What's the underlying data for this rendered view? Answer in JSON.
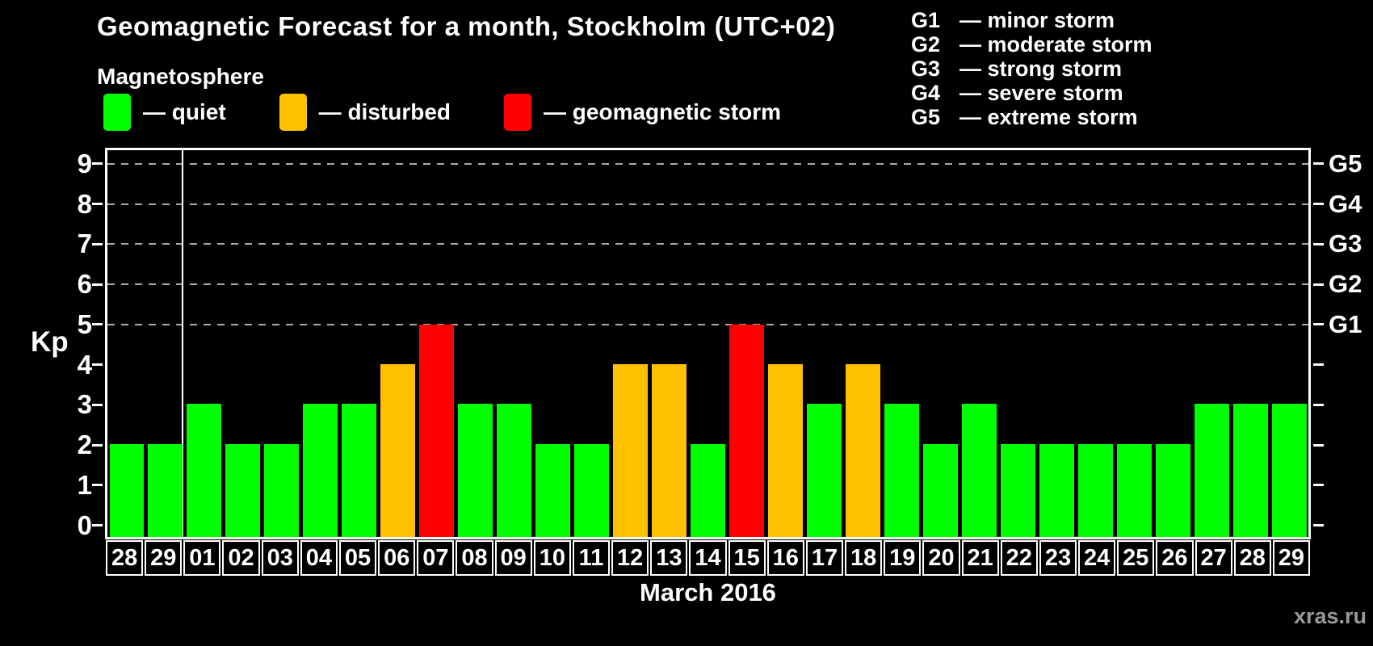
{
  "title": "Geomagnetic Forecast for a month, Stockholm (UTC+02)",
  "subtitle": "Magnetosphere",
  "watermark": "xras.ru",
  "colors": {
    "background": "#000000",
    "text": "#ffffff",
    "grid": "#aaaaaa",
    "watermark": "#999999",
    "quiet": "#00ff00",
    "disturbed": "#ffc000",
    "storm": "#ff0000"
  },
  "legend": {
    "items": [
      {
        "state": "quiet",
        "color": "#00ff00",
        "label": "— quiet"
      },
      {
        "state": "disturbed",
        "color": "#ffc000",
        "label": "— disturbed"
      },
      {
        "state": "storm",
        "color": "#ff0000",
        "label": "— geomagnetic storm"
      }
    ]
  },
  "g_legend": {
    "items": [
      {
        "code": "G1",
        "label": "— minor storm"
      },
      {
        "code": "G2",
        "label": "— moderate storm"
      },
      {
        "code": "G3",
        "label": "— strong storm"
      },
      {
        "code": "G4",
        "label": "— severe storm"
      },
      {
        "code": "G5",
        "label": "— extreme storm"
      }
    ]
  },
  "chart_data": {
    "type": "bar",
    "title": "Geomagnetic Forecast for a month, Stockholm (UTC+02)",
    "xlabel": "March 2016",
    "ylabel": "Kp",
    "ylim": [
      0,
      9
    ],
    "yticks": [
      0,
      1,
      2,
      3,
      4,
      5,
      6,
      7,
      8,
      9
    ],
    "gridlines": [
      5,
      6,
      7,
      8,
      9
    ],
    "axis_top": 9.4,
    "axis_bottom": -0.35,
    "legend_position": "top",
    "grid": true,
    "prev_month_columns": 2,
    "right_axis": [
      {
        "value": 5,
        "label": "G1"
      },
      {
        "value": 6,
        "label": "G2"
      },
      {
        "value": 7,
        "label": "G3"
      },
      {
        "value": 8,
        "label": "G4"
      },
      {
        "value": 9,
        "label": "G5"
      }
    ],
    "categories": [
      "28",
      "29",
      "01",
      "02",
      "03",
      "04",
      "05",
      "06",
      "07",
      "08",
      "09",
      "10",
      "11",
      "12",
      "13",
      "14",
      "15",
      "16",
      "17",
      "18",
      "19",
      "20",
      "21",
      "22",
      "23",
      "24",
      "25",
      "26",
      "27",
      "28",
      "29"
    ],
    "values": [
      2,
      2,
      3,
      2,
      2,
      3,
      3,
      4,
      5,
      3,
      3,
      2,
      2,
      4,
      4,
      2,
      5,
      4,
      3,
      4,
      3,
      2,
      3,
      2,
      2,
      2,
      2,
      2,
      3,
      3,
      3
    ],
    "bars": [
      {
        "day": "28",
        "kp": 2,
        "state": "quiet"
      },
      {
        "day": "29",
        "kp": 2,
        "state": "quiet"
      },
      {
        "day": "01",
        "kp": 3,
        "state": "quiet"
      },
      {
        "day": "02",
        "kp": 2,
        "state": "quiet"
      },
      {
        "day": "03",
        "kp": 2,
        "state": "quiet"
      },
      {
        "day": "04",
        "kp": 3,
        "state": "quiet"
      },
      {
        "day": "05",
        "kp": 3,
        "state": "quiet"
      },
      {
        "day": "06",
        "kp": 4,
        "state": "disturbed"
      },
      {
        "day": "07",
        "kp": 5,
        "state": "storm"
      },
      {
        "day": "08",
        "kp": 3,
        "state": "quiet"
      },
      {
        "day": "09",
        "kp": 3,
        "state": "quiet"
      },
      {
        "day": "10",
        "kp": 2,
        "state": "quiet"
      },
      {
        "day": "11",
        "kp": 2,
        "state": "quiet"
      },
      {
        "day": "12",
        "kp": 4,
        "state": "disturbed"
      },
      {
        "day": "13",
        "kp": 4,
        "state": "disturbed"
      },
      {
        "day": "14",
        "kp": 2,
        "state": "quiet"
      },
      {
        "day": "15",
        "kp": 5,
        "state": "storm"
      },
      {
        "day": "16",
        "kp": 4,
        "state": "disturbed"
      },
      {
        "day": "17",
        "kp": 3,
        "state": "quiet"
      },
      {
        "day": "18",
        "kp": 4,
        "state": "disturbed"
      },
      {
        "day": "19",
        "kp": 3,
        "state": "quiet"
      },
      {
        "day": "20",
        "kp": 2,
        "state": "quiet"
      },
      {
        "day": "21",
        "kp": 3,
        "state": "quiet"
      },
      {
        "day": "22",
        "kp": 2,
        "state": "quiet"
      },
      {
        "day": "23",
        "kp": 2,
        "state": "quiet"
      },
      {
        "day": "24",
        "kp": 2,
        "state": "quiet"
      },
      {
        "day": "25",
        "kp": 2,
        "state": "quiet"
      },
      {
        "day": "26",
        "kp": 2,
        "state": "quiet"
      },
      {
        "day": "27",
        "kp": 3,
        "state": "quiet"
      },
      {
        "day": "28",
        "kp": 3,
        "state": "quiet"
      },
      {
        "day": "29",
        "kp": 3,
        "state": "quiet"
      }
    ]
  }
}
